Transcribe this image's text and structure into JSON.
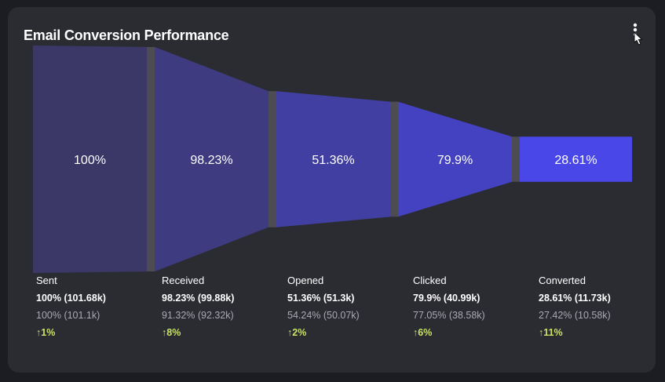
{
  "card": {
    "title": "Email Conversion Performance",
    "menu_icon": "vertical-ellipsis-icon"
  },
  "chart_data": {
    "type": "funnel",
    "title": "Email Conversion Performance",
    "stages": [
      {
        "label": "Sent",
        "value": 101.68,
        "center_label": "100%",
        "current": "100% (101.68k)",
        "previous": "100% (101.1k)",
        "change": "↑1%",
        "color": "#3b3868"
      },
      {
        "label": "Received",
        "value": 99.88,
        "center_label": "98.23%",
        "current": "98.23% (99.88k)",
        "previous": "91.32% (92.32k)",
        "change": "↑8%",
        "color": "#3e3b80"
      },
      {
        "label": "Opened",
        "value": 51.3,
        "center_label": "51.36%",
        "current": "51.36% (51.3k)",
        "previous": "54.24% (50.07k)",
        "change": "↑2%",
        "color": "#4140a2"
      },
      {
        "label": "Clicked",
        "value": 40.99,
        "center_label": "79.9%",
        "current": "79.9% (40.99k)",
        "previous": "77.05% (38.58k)",
        "change": "↑6%",
        "color": "#4442c0"
      },
      {
        "label": "Converted",
        "value": 11.73,
        "center_label": "28.61%",
        "current": "28.61% (11.73k)",
        "previous": "27.42% (10.58k)",
        "change": "↑11%",
        "color": "#4a47e8"
      }
    ],
    "colors": {
      "separator": "#4c4c52",
      "label_text": "#ffffff",
      "previous_text": "#a9a9b1",
      "change_text": "#c9e265"
    }
  }
}
